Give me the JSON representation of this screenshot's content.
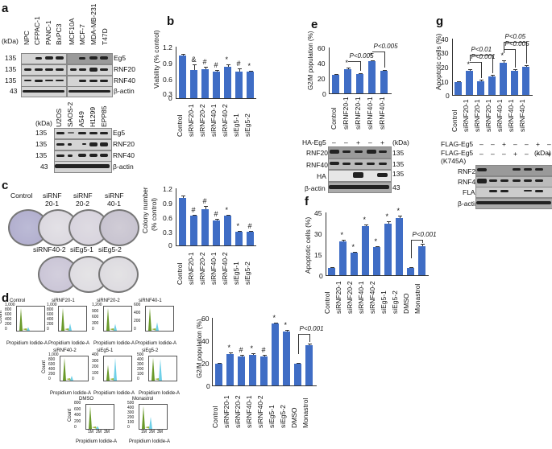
{
  "panels": {
    "a": {
      "label": "a",
      "blot1": {
        "lanes": [
          "NPC",
          "CFPAC-1",
          "PANC-1",
          "BxPC3",
          "MCF10A",
          "MCF-7",
          "MDA-MB-231",
          "T47D"
        ],
        "kda_label": "(kDa)",
        "rows": [
          {
            "kda": "135",
            "protein": "Eg5"
          },
          {
            "kda": "135",
            "protein": "RNF20"
          },
          {
            "kda": "135",
            "protein": "RNF40"
          },
          {
            "kda": "43",
            "protein": "β-actin"
          }
        ]
      },
      "blot2": {
        "lanes": [
          "U2OS",
          "SAOS-2",
          "A549",
          "H1299",
          "EPP85"
        ],
        "kda_label": "(kDa)",
        "rows": [
          {
            "kda": "135",
            "protein": "Eg5"
          },
          {
            "kda": "135",
            "protein": "RNF20"
          },
          {
            "kda": "135",
            "protein": "RNF40"
          },
          {
            "kda": "43",
            "protein": "β-actin"
          }
        ]
      }
    },
    "b": {
      "label": "b"
    },
    "c": {
      "label": "c",
      "plates_row1": [
        "Control",
        "siRNF\n20-1",
        "siRNF\n20-2",
        "siRNF\n40-1"
      ],
      "plates_row1_l1": [
        "Control",
        "siRNF",
        "siRNF",
        "siRNF"
      ],
      "plates_row1_l2": [
        "",
        "20-1",
        "20-2",
        "40-1"
      ],
      "plates_row2": [
        "siRNF40-2",
        "siEg5-1",
        "siEg5-2"
      ]
    },
    "d": {
      "label": "d",
      "histograms": [
        {
          "title": "Control",
          "yticks": [
            "1,000",
            "800",
            "600",
            "400",
            "200",
            "0"
          ],
          "xlabel": "Propidium Iodide-A"
        },
        {
          "title": "siRNF20-1",
          "yticks": [
            "1,000",
            "800",
            "600",
            "400",
            "200",
            "0"
          ],
          "xlabel": "Propidium Iodide-A"
        },
        {
          "title": "siRNF20-2",
          "yticks": [
            "1,200",
            "900",
            "600",
            "300",
            "0"
          ],
          "xlabel": "Propidium Iodide-A"
        },
        {
          "title": "siRNF40-1",
          "yticks": [
            "600",
            "400",
            "200",
            "0"
          ],
          "xlabel": "Propidium Iodide-A"
        },
        {
          "title": "siRNF40-2",
          "yticks": [
            "1,000",
            "800",
            "600",
            "400",
            "200",
            "0"
          ],
          "xlabel": "Propidium Iodide-A"
        },
        {
          "title": "siEg5-1",
          "yticks": [
            "400",
            "300",
            "200",
            "100",
            "0"
          ],
          "xlabel": "Propidium Iodide-A"
        },
        {
          "title": "siEg5-2",
          "yticks": [
            "500",
            "400",
            "300",
            "200",
            "100",
            "0"
          ],
          "xlabel": "Propidium Iodide-A"
        },
        {
          "title": "DMSO",
          "yticks": [
            "800",
            "600",
            "400",
            "200",
            "0"
          ],
          "xticks": [
            "1M",
            "2M",
            "3M"
          ],
          "xlabel": "Propidium Iodide-A"
        },
        {
          "title": "Monastrol",
          "yticks": [
            "500",
            "400",
            "300",
            "200",
            "100",
            "0"
          ],
          "xticks": [
            "1M",
            "2M",
            "3M"
          ],
          "xlabel": "Propidium Iodide-A"
        }
      ],
      "count_label": "Count",
      "xticks_k": [
        "0",
        "50k",
        "100k",
        "150k",
        "200k",
        "250k"
      ]
    },
    "e": {
      "label": "e",
      "blot": {
        "ha_eg5_label": "HA-Eg5",
        "ha_eg5_signs": [
          "–",
          "–",
          "+",
          "–",
          "+"
        ],
        "kda_label": "(kDa)",
        "rows": [
          {
            "protein": "RNF20",
            "kda": "135"
          },
          {
            "protein": "RNF40",
            "kda": "135"
          },
          {
            "protein": "HA",
            "kda": "135"
          },
          {
            "protein": "β-actin",
            "kda": "43"
          }
        ]
      }
    },
    "f": {
      "label": "f"
    },
    "g": {
      "label": "g",
      "blot": {
        "flag_eg5_label": "FLAG-Eg5",
        "flag_eg5_signs": [
          "–",
          "–",
          "+",
          "–",
          "–",
          "+",
          "–"
        ],
        "flag_k745a_label_1": "FLAG-Eg5",
        "flag_k745a_label_2": "(K745A)",
        "flag_k745a_signs": [
          "–",
          "–",
          "–",
          "+",
          "–",
          "–",
          "+"
        ],
        "kda_label": "(kDa)",
        "rows": [
          {
            "protein": "RNF20",
            "kda": "135"
          },
          {
            "protein": "RNF40",
            "kda": "135"
          },
          {
            "protein": "FLAG",
            "kda": "135"
          },
          {
            "protein": "β-actin",
            "kda": "43"
          }
        ]
      }
    }
  },
  "chart_data": [
    {
      "id": "b",
      "type": "bar",
      "title": "",
      "xlabel": "",
      "ylabel": "Viability (% control)",
      "ylim": [
        0,
        1.2
      ],
      "yticks": [
        "1.2",
        "0.9",
        "0.6",
        "0.3",
        "0"
      ],
      "categories": [
        "Control",
        "siRNF20-1",
        "siRNF20-2",
        "siRNF40-1",
        "siRNF40-2",
        "siEg5-1",
        "siEg5-2"
      ],
      "values": [
        1.0,
        0.65,
        0.67,
        0.62,
        0.74,
        0.61,
        0.62
      ],
      "errors": [
        0.03,
        0.14,
        0.06,
        0.03,
        0.05,
        0.08,
        0.02
      ],
      "annotations": [
        "",
        "&",
        "#",
        "#",
        "*",
        "#",
        "*"
      ]
    },
    {
      "id": "c",
      "type": "bar",
      "ylabel": "Colony number (% control)",
      "ylabel_l1": "Colony number",
      "ylabel_l2": "(% control)",
      "ylim": [
        0,
        1.2
      ],
      "yticks": [
        "1.2",
        "0.9",
        "0.6",
        "0.3",
        "0"
      ],
      "categories": [
        "Control",
        "siRNF20-1",
        "siRNF20-2",
        "siRNF40-1",
        "siRNF40-2",
        "siEg5-1",
        "siEg5-2"
      ],
      "values": [
        1.0,
        0.62,
        0.76,
        0.52,
        0.62,
        0.28,
        0.28
      ],
      "errors": [
        0.04,
        0.03,
        0.06,
        0.03,
        0.03,
        0.02,
        0.02
      ],
      "annotations": [
        "",
        "#",
        "#",
        "#",
        "*",
        "*",
        "#"
      ]
    },
    {
      "id": "d",
      "type": "bar",
      "ylabel": "G2/M population (%)",
      "ylim": [
        0,
        60
      ],
      "yticks": [
        "60",
        "40",
        "20",
        "0"
      ],
      "categories": [
        "Control",
        "siRNF20-1",
        "siRNF20-2",
        "siRNF40-1",
        "siRNF40-2",
        "siEg5-1",
        "siEg5-2",
        "DMSO",
        "Monastrol"
      ],
      "values": [
        19,
        28,
        26,
        27,
        26,
        55,
        48,
        19,
        36
      ],
      "errors": [
        1,
        1.5,
        1.5,
        1.5,
        1.5,
        1,
        1.5,
        1,
        1.5
      ],
      "annotations": [
        "",
        "*",
        "#",
        "*",
        "#",
        "*",
        "*",
        "",
        ""
      ],
      "comparisons": [
        {
          "from": "DMSO",
          "to": "Monastrol",
          "label": "P<0.001"
        }
      ]
    },
    {
      "id": "e",
      "type": "bar",
      "ylabel": "G2/M population (%)",
      "ylim": [
        0,
        60
      ],
      "yticks": [
        "60",
        "40",
        "20",
        "0"
      ],
      "categories": [
        "Control",
        "siRNF20-1",
        "siRNF20-1",
        "siRNF40-1",
        "siRNF40-1"
      ],
      "values": [
        24,
        32,
        25,
        42,
        30
      ],
      "errors": [
        1,
        1.5,
        1,
        1.5,
        1
      ],
      "annotations": [
        "",
        "*",
        "",
        "*",
        ""
      ],
      "comparisons": [
        {
          "from": 1,
          "to": 2,
          "label": "P<0.005"
        },
        {
          "from": 3,
          "to": 4,
          "label": "P<0.005"
        }
      ]
    },
    {
      "id": "f",
      "type": "bar",
      "ylabel": "Apoptotic cells (%)",
      "ylim": [
        0,
        45
      ],
      "yticks": [
        "45",
        "30",
        "15",
        "0"
      ],
      "categories": [
        "Control",
        "siRNF20-1",
        "siRNF20-2",
        "siRNF40-1",
        "siRNF40-2",
        "siEg5-1",
        "siEg5-2",
        "DMSO",
        "Monastrol"
      ],
      "values": [
        5,
        24,
        16,
        35,
        20,
        37,
        41,
        5,
        21
      ],
      "errors": [
        1,
        1.2,
        1,
        1.5,
        1,
        1.5,
        1.5,
        1,
        1.5
      ],
      "annotations": [
        "",
        "*",
        "*",
        "*",
        "*",
        "*",
        "*",
        "",
        ""
      ],
      "comparisons": [
        {
          "from": "DMSO",
          "to": "Monastrol",
          "label": "P<0.001"
        }
      ]
    },
    {
      "id": "g",
      "type": "bar",
      "ylabel": "Apoptotic cells (%)",
      "ylim": [
        0,
        40
      ],
      "yticks": [
        "40",
        "30",
        "20",
        "10",
        "0"
      ],
      "categories": [
        "Control",
        "siRNF20-1",
        "siRNF20-1",
        "siRNF20-1",
        "siRNF40-1",
        "siRNF40-1",
        "siRNF40-1"
      ],
      "values": [
        9,
        17,
        10,
        13,
        23,
        17,
        20
      ],
      "errors": [
        1,
        1.2,
        1,
        1.2,
        1.5,
        1.2,
        1.2
      ],
      "annotations": [
        "",
        "*",
        "",
        "",
        "*",
        "",
        ""
      ],
      "comparisons": [
        {
          "from": 1,
          "to": 3,
          "label": "P<0.01"
        },
        {
          "from": 1,
          "to": 2,
          "label": "P<0.001"
        },
        {
          "from": 4,
          "to": 6,
          "label": "P<0.05"
        },
        {
          "from": 4,
          "to": 5,
          "label": "P<0.005"
        }
      ]
    }
  ]
}
